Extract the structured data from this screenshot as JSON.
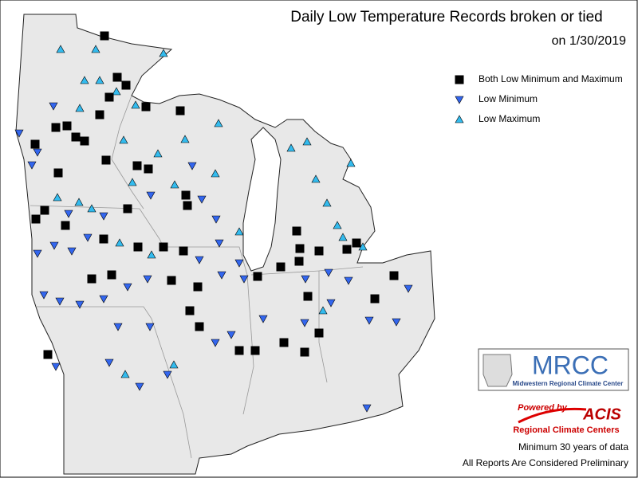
{
  "header": {
    "title": "Daily Low Temperature Records broken or tied",
    "date": "on 1/30/2019"
  },
  "legend": {
    "items": [
      {
        "label": "Both Low Minimum and Maximum",
        "color": "#000000"
      },
      {
        "label": "Low Minimum",
        "color": "#3366ee"
      },
      {
        "label": "Low Maximum",
        "color": "#33bbee"
      }
    ]
  },
  "logos": {
    "mrcc": "MRCC",
    "mrcc_name": "Midwestern Regional Climate Center",
    "powered": "Powered by",
    "acis": "ACIS",
    "acis_name": "Regional Climate Centers"
  },
  "notes": [
    "Minimum 30 years of data",
    "All Reports Are Considered Preliminary"
  ]
}
